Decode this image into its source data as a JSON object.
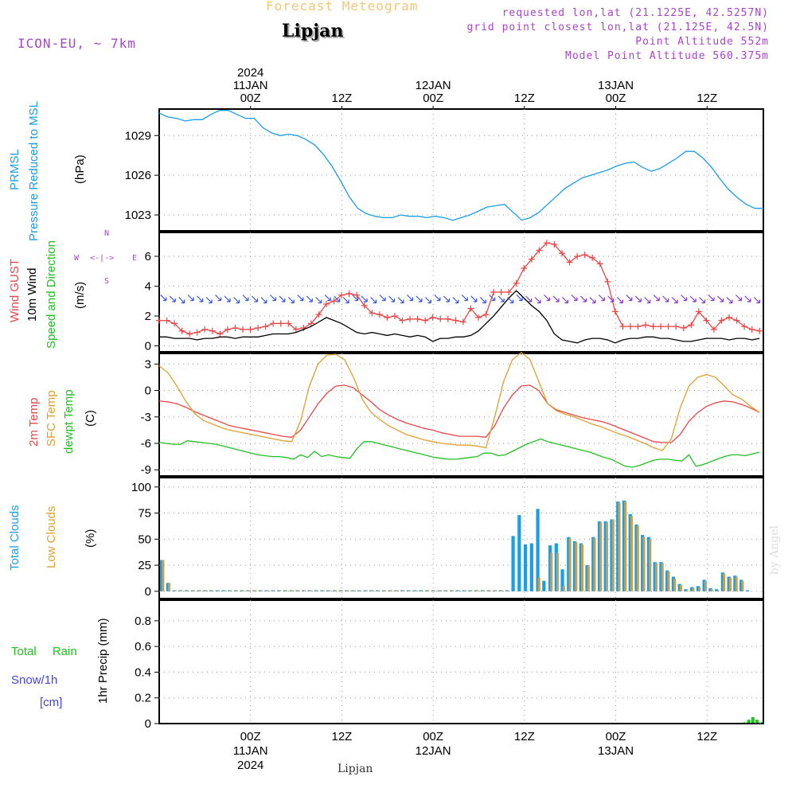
{
  "header": {
    "subtitle": "Forecast Meteogram",
    "location": "Lipjan",
    "model": "ICON-EU, ~ 7km",
    "requested": "requested lon,lat (21.1225E, 42.5257N)",
    "grid_point": "grid point closest lon,lat (21.125E, 42.5N)",
    "point_alt": "Point Altitude 552m",
    "model_alt": "Model Point Altitude 560.375m",
    "footer_location": "Lipjan",
    "credit": "by Angel"
  },
  "colors": {
    "pressure": "#1a9ee6",
    "gust": "#e84848",
    "wind": "#000000",
    "t2m": "#e84848",
    "sfc": "#e0a030",
    "dewpt": "#22c022",
    "total_clouds": "#1a9ee6",
    "low_clouds": "#c8a050",
    "rain": "#22c022",
    "snow": "#4444ee",
    "wind_arrow": "#8833cc",
    "header_info": "#aa44cc",
    "subtitle": "#f0c878",
    "grid": "#999999"
  },
  "time_axis": {
    "top_labels": [
      {
        "lines": [
          "2024",
          "11JAN",
          "00Z"
        ],
        "hour": 15
      },
      {
        "lines": [
          "12Z"
        ],
        "hour": 27
      },
      {
        "lines": [
          "12JAN",
          "00Z"
        ],
        "hour": 39
      },
      {
        "lines": [
          "12Z"
        ],
        "hour": 51
      },
      {
        "lines": [
          "13JAN",
          "00Z"
        ],
        "hour": 63
      },
      {
        "lines": [
          "12Z"
        ],
        "hour": 75
      }
    ],
    "bottom_labels": [
      {
        "lines": [
          "00Z",
          "11JAN",
          "2024"
        ],
        "hour": 15
      },
      {
        "lines": [
          "12Z"
        ],
        "hour": 27
      },
      {
        "lines": [
          "00Z",
          "12JAN"
        ],
        "hour": 39
      },
      {
        "lines": [
          "12Z"
        ],
        "hour": 51
      },
      {
        "lines": [
          "00Z",
          "13JAN"
        ],
        "hour": 63
      },
      {
        "lines": [
          "12Z"
        ],
        "hour": 75
      }
    ]
  },
  "panels": {
    "pressure": {
      "labels": [
        "PRMSL",
        "Pressure Reduced to MSL"
      ],
      "unit": "(hPa)",
      "ticks": [
        "1023",
        "1026",
        "1029"
      ]
    },
    "wind": {
      "labels": [
        "Wind GUST",
        "10m Wind",
        "Speed and Direction"
      ],
      "unit": "(m/s)",
      "ticks": [
        "0",
        "2",
        "4",
        "6"
      ],
      "compass": {
        "n": "N",
        "s": "S",
        "w": "W",
        "e": "E",
        "dash": "<-|->"
      }
    },
    "temp": {
      "labels": [
        "2m Temp",
        "SFC Temp",
        "dewpt Temp"
      ],
      "unit": "(C)",
      "ticks": [
        "-9",
        "-6",
        "-3",
        "0",
        "3"
      ]
    },
    "clouds": {
      "labels": [
        "Total Clouds",
        "Low Clouds"
      ],
      "unit": "(%)",
      "ticks": [
        "0",
        "25",
        "50",
        "75",
        "100"
      ]
    },
    "precip": {
      "labels": [
        "Total Rain",
        "Snow/1h",
        "[cm]"
      ],
      "unit": "1hr Precip (mm)",
      "ticks": [
        "0",
        "0.2",
        "0.4",
        "0.6",
        "0.8"
      ]
    }
  },
  "chart_data": [
    {
      "type": "line",
      "title": "PRMSL Pressure Reduced to MSL",
      "ylabel": "(hPa)",
      "ylim": [
        1021.8,
        1031.0
      ],
      "x_hours_step": 1,
      "series": [
        {
          "name": "PRMSL",
          "values": [
            1030.7,
            1030.4,
            1030.3,
            1030.1,
            1030.2,
            1030.2,
            1030.6,
            1030.9,
            1030.9,
            1030.6,
            1030.3,
            1030.3,
            1029.6,
            1029.2,
            1029.0,
            1029.1,
            1029.0,
            1028.7,
            1028.3,
            1027.6,
            1026.7,
            1025.6,
            1024.4,
            1023.5,
            1023.1,
            1022.9,
            1022.8,
            1022.8,
            1023.0,
            1022.9,
            1022.9,
            1022.8,
            1022.9,
            1022.8,
            1022.6,
            1022.8,
            1023.0,
            1023.3,
            1023.6,
            1023.7,
            1023.8,
            1023.2,
            1022.6,
            1022.8,
            1023.2,
            1023.8,
            1024.4,
            1025.0,
            1025.4,
            1025.8,
            1026.0,
            1026.2,
            1026.4,
            1026.7,
            1026.9,
            1027.0,
            1026.6,
            1026.3,
            1026.5,
            1026.9,
            1027.3,
            1027.8,
            1027.8,
            1027.3,
            1026.6,
            1025.7,
            1024.9,
            1024.3,
            1023.8,
            1023.5,
            1023.5
          ]
        }
      ]
    },
    {
      "type": "line",
      "title": "Wind GUST / 10m Wind Speed and Direction",
      "ylabel": "(m/s)",
      "ylim": [
        -0.4,
        7.6
      ],
      "series": [
        {
          "name": "Wind GUST",
          "values": [
            1.7,
            1.7,
            1.5,
            1.0,
            0.8,
            0.9,
            1.1,
            1.0,
            0.8,
            1.1,
            1.2,
            1.1,
            1.1,
            1.2,
            1.3,
            1.5,
            1.5,
            1.5,
            1.1,
            1.2,
            1.5,
            2.1,
            2.8,
            3.0,
            3.4,
            3.5,
            3.4,
            2.7,
            2.2,
            2.1,
            1.9,
            2.0,
            1.7,
            1.8,
            1.8,
            1.7,
            1.9,
            1.8,
            1.8,
            1.7,
            1.6,
            2.5,
            1.9,
            2.1,
            3.6,
            3.6,
            3.6,
            4.2,
            5.2,
            5.8,
            6.4,
            6.9,
            6.8,
            6.2,
            5.6,
            6.0,
            6.1,
            5.9,
            5.5,
            4.3,
            2.3,
            1.3,
            1.3,
            1.3,
            1.4,
            1.3,
            1.3,
            1.3,
            1.3,
            1.2,
            1.4,
            2.3,
            1.7,
            1.1,
            1.7,
            1.9,
            1.7,
            1.3,
            1.1,
            1.0
          ]
        },
        {
          "name": "10m Wind",
          "values": [
            0.6,
            0.6,
            0.5,
            0.5,
            0.5,
            0.4,
            0.5,
            0.5,
            0.6,
            0.6,
            0.5,
            0.6,
            0.6,
            0.6,
            0.7,
            0.8,
            0.8,
            0.8,
            0.9,
            1.1,
            1.3,
            1.6,
            1.9,
            1.7,
            1.5,
            1.2,
            0.9,
            0.8,
            0.9,
            0.8,
            0.7,
            0.8,
            0.7,
            0.6,
            0.7,
            0.6,
            0.3,
            0.5,
            0.5,
            0.6,
            0.6,
            0.7,
            1.0,
            1.5,
            2.0,
            2.6,
            3.2,
            3.7,
            3.2,
            2.7,
            2.3,
            1.7,
            0.8,
            0.4,
            0.3,
            0.2,
            0.4,
            0.5,
            0.5,
            0.4,
            0.2,
            0.4,
            0.5,
            0.5,
            0.6,
            0.6,
            0.5,
            0.5,
            0.4,
            0.3,
            0.3,
            0.4,
            0.5,
            0.5,
            0.5,
            0.4,
            0.5,
            0.5,
            0.4,
            0.5
          ]
        }
      ]
    },
    {
      "type": "line",
      "title": "2m Temp / SFC Temp / dewpt Temp",
      "ylabel": "(C)",
      "ylim": [
        -9.7,
        4.2
      ],
      "series": [
        {
          "name": "2m Temp",
          "values": [
            -1.2,
            -1.3,
            -1.5,
            -1.9,
            -2.4,
            -2.8,
            -3.2,
            -3.6,
            -4.0,
            -4.2,
            -4.4,
            -4.6,
            -4.8,
            -5.0,
            -5.2,
            -5.3,
            -4.5,
            -3.0,
            -1.5,
            -0.3,
            0.5,
            0.6,
            0.3,
            -0.5,
            -1.3,
            -2.2,
            -2.8,
            -3.3,
            -3.7,
            -4.0,
            -4.3,
            -4.5,
            -4.8,
            -5.0,
            -5.2,
            -5.2,
            -5.2,
            -5.3,
            -4.0,
            -2.0,
            -0.5,
            0.5,
            0.6,
            0.0,
            -1.5,
            -2.2,
            -2.5,
            -2.8,
            -3.1,
            -3.3,
            -3.5,
            -3.8,
            -4.2,
            -4.6,
            -5.0,
            -5.4,
            -5.8,
            -5.9,
            -5.9,
            -5.0,
            -3.5,
            -2.5,
            -1.8,
            -1.4,
            -1.2,
            -1.3,
            -1.6,
            -2.0,
            -2.5
          ]
        },
        {
          "name": "SFC Temp",
          "values": [
            2.8,
            2.0,
            0.5,
            -1.2,
            -2.6,
            -3.4,
            -3.8,
            -4.2,
            -4.5,
            -4.7,
            -4.9,
            -5.1,
            -5.3,
            -5.5,
            -5.7,
            -5.8,
            -3.5,
            0.5,
            3.0,
            4.0,
            4.1,
            3.5,
            1.5,
            -1.0,
            -2.5,
            -3.3,
            -4.0,
            -4.5,
            -5.0,
            -5.3,
            -5.6,
            -5.8,
            -6.0,
            -6.1,
            -6.2,
            -6.2,
            -6.3,
            -6.5,
            -3.0,
            1.0,
            3.5,
            4.3,
            3.5,
            1.0,
            -1.5,
            -2.3,
            -2.7,
            -3.0,
            -3.4,
            -3.8,
            -4.1,
            -4.5,
            -4.9,
            -5.2,
            -5.6,
            -6.0,
            -6.5,
            -6.8,
            -5.5,
            -2.0,
            0.5,
            1.5,
            1.8,
            1.5,
            0.5,
            -0.5,
            -1.0,
            -1.8,
            -2.5
          ]
        },
        {
          "name": "dewpt Temp",
          "values": [
            -5.9,
            -6.0,
            -6.1,
            -6.1,
            -5.7,
            -5.8,
            -5.9,
            -6.0,
            -6.1,
            -6.3,
            -6.5,
            -6.7,
            -6.9,
            -7.1,
            -7.3,
            -7.4,
            -7.5,
            -7.5,
            -7.6,
            -7.8,
            -7.3,
            -7.6,
            -6.9,
            -7.5,
            -7.3,
            -7.5,
            -7.6,
            -7.7,
            -6.6,
            -5.8,
            -5.8,
            -6.0,
            -6.2,
            -6.4,
            -6.6,
            -6.8,
            -7.0,
            -7.2,
            -7.4,
            -7.6,
            -7.7,
            -7.8,
            -7.8,
            -7.7,
            -7.6,
            -7.5,
            -7.1,
            -7.1,
            -7.4,
            -7.3,
            -6.9,
            -6.5,
            -6.1,
            -5.8,
            -5.5,
            -5.8,
            -6.0,
            -6.2,
            -6.4,
            -6.6,
            -6.8,
            -7.0,
            -7.3,
            -7.6,
            -7.8,
            -8.2,
            -8.6,
            -8.7,
            -8.5,
            -8.2,
            -7.9,
            -7.8,
            -7.8,
            -7.9,
            -8.0,
            -7.3,
            -8.6,
            -8.4,
            -8.1,
            -7.8,
            -7.5,
            -7.3,
            -7.3,
            -7.4,
            -7.2,
            -7.0
          ]
        }
      ]
    },
    {
      "type": "bar",
      "title": "Total Clouds / Low Clouds",
      "ylabel": "(%)",
      "ylim": [
        -7,
        109
      ],
      "series": [
        {
          "name": "Total Clouds",
          "values": [
            30,
            8,
            1,
            1,
            1,
            1,
            1,
            1,
            1,
            1,
            1,
            1,
            1,
            1,
            1,
            1,
            1,
            1,
            1,
            1,
            1,
            1,
            1,
            1,
            1,
            1,
            1,
            1,
            1,
            1,
            1,
            1,
            1,
            1,
            1,
            1,
            1,
            1,
            1,
            1,
            1,
            1,
            1,
            1,
            1,
            1,
            1,
            1,
            1,
            1,
            1,
            1,
            1,
            1,
            1,
            1,
            1,
            53,
            73,
            45,
            46,
            79,
            10,
            44,
            46,
            21,
            52,
            48,
            46,
            25,
            52,
            67,
            67,
            69,
            86,
            87,
            74,
            64,
            54,
            52,
            28,
            28,
            20,
            14,
            7,
            2,
            4,
            5,
            11,
            3,
            2,
            18,
            14,
            15,
            11,
            1,
            0,
            0
          ]
        },
        {
          "name": "Low Clouds",
          "values": [
            30,
            8,
            1,
            1,
            1,
            1,
            1,
            1,
            1,
            1,
            1,
            1,
            1,
            1,
            1,
            1,
            1,
            1,
            1,
            1,
            1,
            1,
            1,
            1,
            1,
            1,
            1,
            1,
            1,
            1,
            1,
            1,
            1,
            1,
            1,
            1,
            1,
            1,
            1,
            1,
            1,
            1,
            1,
            1,
            1,
            1,
            1,
            1,
            1,
            1,
            1,
            1,
            1,
            1,
            1,
            1,
            1,
            0,
            0,
            0,
            0,
            13,
            0,
            37,
            37,
            5,
            51,
            47,
            45,
            24,
            51,
            66,
            66,
            69,
            85,
            86,
            72,
            63,
            52,
            50,
            27,
            27,
            19,
            12,
            6,
            1,
            3,
            4,
            10,
            2,
            1,
            17,
            13,
            14,
            10,
            0,
            0,
            0
          ]
        }
      ]
    },
    {
      "type": "bar",
      "title": "1hr Precip",
      "ylabel": "1hr Precip (mm)",
      "ylim": [
        0,
        0.96
      ],
      "series": [
        {
          "name": "Total Rain",
          "values": [
            0,
            0,
            0,
            0,
            0,
            0,
            0,
            0,
            0,
            0,
            0,
            0,
            0,
            0,
            0,
            0,
            0,
            0,
            0,
            0,
            0,
            0,
            0,
            0,
            0,
            0,
            0,
            0,
            0,
            0,
            0,
            0,
            0,
            0,
            0,
            0,
            0,
            0,
            0,
            0,
            0,
            0,
            0,
            0,
            0,
            0,
            0,
            0,
            0,
            0,
            0,
            0,
            0,
            0,
            0,
            0,
            0,
            0,
            0,
            0,
            0,
            0,
            0,
            0,
            0,
            0,
            0,
            0,
            0,
            0,
            0,
            0,
            0,
            0,
            0,
            0,
            0,
            0,
            0,
            0,
            0,
            0,
            0,
            0,
            0,
            0,
            0,
            0,
            0,
            0,
            0,
            0,
            0,
            0,
            0,
            0,
            0,
            0,
            0,
            0,
            0,
            0,
            0,
            0,
            0,
            0,
            0,
            0,
            0,
            0,
            0,
            0,
            0,
            0,
            0,
            0,
            0,
            0,
            0,
            0,
            0,
            0,
            0,
            0,
            0,
            0,
            0,
            0,
            0,
            0,
            0,
            0,
            0,
            0,
            0,
            0,
            0,
            0,
            0,
            0,
            0,
            0,
            0,
            0,
            0.01,
            0.03,
            0.05,
            0.03,
            0.01
          ]
        }
      ]
    }
  ]
}
